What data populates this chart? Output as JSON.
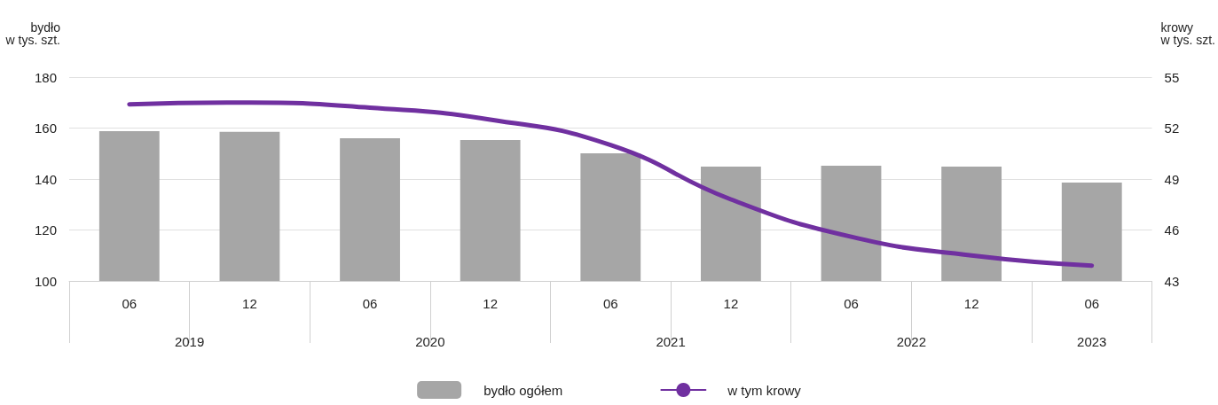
{
  "chart_data": {
    "type": "bar",
    "categories": [
      "06",
      "12",
      "06",
      "12",
      "06",
      "12",
      "06",
      "12",
      "06"
    ],
    "series": [
      {
        "name": "bydło ogółem",
        "color": "#a6a6a6",
        "values": [
          158.8,
          158.5,
          156.0,
          155.3,
          150.1,
          144.9,
          145.2,
          144.9,
          138.6
        ]
      },
      {
        "name": "w tym krowy",
        "type": "line",
        "axis": "y2",
        "color": "#7030a0",
        "values": [
          53.4,
          53.5,
          53.2,
          52.5,
          51.0,
          47.8,
          45.6,
          44.5,
          43.9
        ]
      }
    ],
    "ylabel": "bydło\nw tys. szt.",
    "y2label": "krowy\nw tys. szt.",
    "ylim": [
      100,
      180
    ],
    "yticks": [
      100,
      120,
      140,
      160,
      180
    ],
    "y2lim": [
      43,
      55
    ],
    "y2ticks": [
      43,
      46,
      49,
      52,
      55
    ],
    "annotations": [
      "2019",
      "2020",
      "2021",
      "2022",
      "2023"
    ],
    "grid": "y",
    "legend": "bottom",
    "marker": "none",
    "line_style": "solid"
  }
}
